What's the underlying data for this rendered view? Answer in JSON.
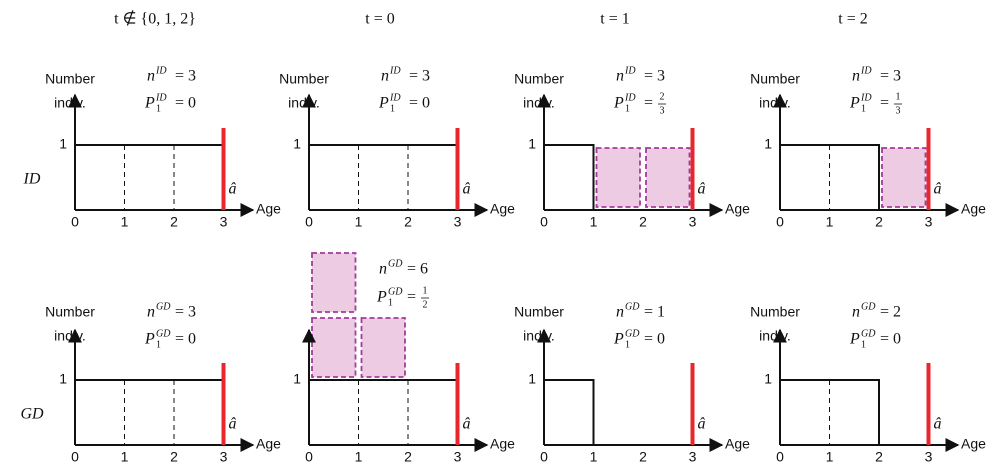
{
  "columns": [
    "t ∉ {0, 1, 2}",
    "t = 0",
    "t = 1",
    "t = 2"
  ],
  "rows": [
    "ID",
    "GD"
  ],
  "panels": [
    {
      "y_label": [
        "Number",
        "indiv."
      ],
      "y_tick": "1",
      "x_ticks": [
        "0",
        "1",
        "2",
        "3"
      ],
      "x_label": "Age",
      "marker": "â",
      "n": {
        "symbol": "n",
        "sup": "ID",
        "rest": "= 3"
      },
      "p": {
        "symbol": "P",
        "sub": "1",
        "sup": "ID",
        "rest": "= 0"
      }
    },
    {
      "y_label": [
        "Number",
        "indiv."
      ],
      "y_tick": "1",
      "x_ticks": [
        "0",
        "1",
        "2",
        "3"
      ],
      "x_label": "Age",
      "marker": "â",
      "n": {
        "symbol": "n",
        "sup": "ID",
        "rest": "= 3"
      },
      "p": {
        "symbol": "P",
        "sub": "1",
        "sup": "ID",
        "rest": "= 0"
      }
    },
    {
      "y_label": [
        "Number",
        "indiv."
      ],
      "y_tick": "1",
      "x_ticks": [
        "0",
        "1",
        "2",
        "3"
      ],
      "x_label": "Age",
      "marker": "â",
      "n": {
        "symbol": "n",
        "sup": "ID",
        "rest": "= 3"
      },
      "p": {
        "symbol": "P",
        "sub": "1",
        "sup": "ID",
        "rest": "=",
        "numerator": "2",
        "denominator": "3"
      }
    },
    {
      "y_label": [
        "Number",
        "indiv."
      ],
      "y_tick": "1",
      "x_ticks": [
        "0",
        "1",
        "2",
        "3"
      ],
      "x_label": "Age",
      "marker": "â",
      "n": {
        "symbol": "n",
        "sup": "ID",
        "rest": "= 3"
      },
      "p": {
        "symbol": "P",
        "sub": "1",
        "sup": "ID",
        "rest": "=",
        "numerator": "1",
        "denominator": "3"
      }
    },
    {
      "y_label": [
        "Number",
        "indiv."
      ],
      "y_tick": "1",
      "x_ticks": [
        "0",
        "1",
        "2",
        "3"
      ],
      "x_label": "Age",
      "marker": "â",
      "n": {
        "symbol": "n",
        "sup": "GD",
        "rest": "= 3"
      },
      "p": {
        "symbol": "P",
        "sub": "1",
        "sup": "GD",
        "rest": "= 0"
      }
    },
    {
      "y_tick": "1",
      "x_ticks": [
        "0",
        "1",
        "2",
        "3"
      ],
      "x_label": "Age",
      "marker": "â",
      "n": {
        "symbol": "n",
        "sup": "GD",
        "rest": "= 6"
      },
      "p": {
        "symbol": "P",
        "sub": "1",
        "sup": "GD",
        "rest": "=",
        "numerator": "1",
        "denominator": "2"
      }
    },
    {
      "y_label": [
        "Number",
        "indiv."
      ],
      "y_tick": "1",
      "x_ticks": [
        "0",
        "1",
        "2",
        "3"
      ],
      "x_label": "Age",
      "marker": "â",
      "n": {
        "symbol": "n",
        "sup": "GD",
        "rest": "= 1"
      },
      "p": {
        "symbol": "P",
        "sub": "1",
        "sup": "GD",
        "rest": "= 0"
      }
    },
    {
      "y_label": [
        "Number",
        "indiv."
      ],
      "y_tick": "1",
      "x_ticks": [
        "0",
        "1",
        "2",
        "3"
      ],
      "x_label": "Age",
      "marker": "â",
      "n": {
        "symbol": "n",
        "sup": "GD",
        "rest": "= 2"
      },
      "p": {
        "symbol": "P",
        "sub": "1",
        "sup": "GD",
        "rest": "= 0"
      }
    }
  ]
}
